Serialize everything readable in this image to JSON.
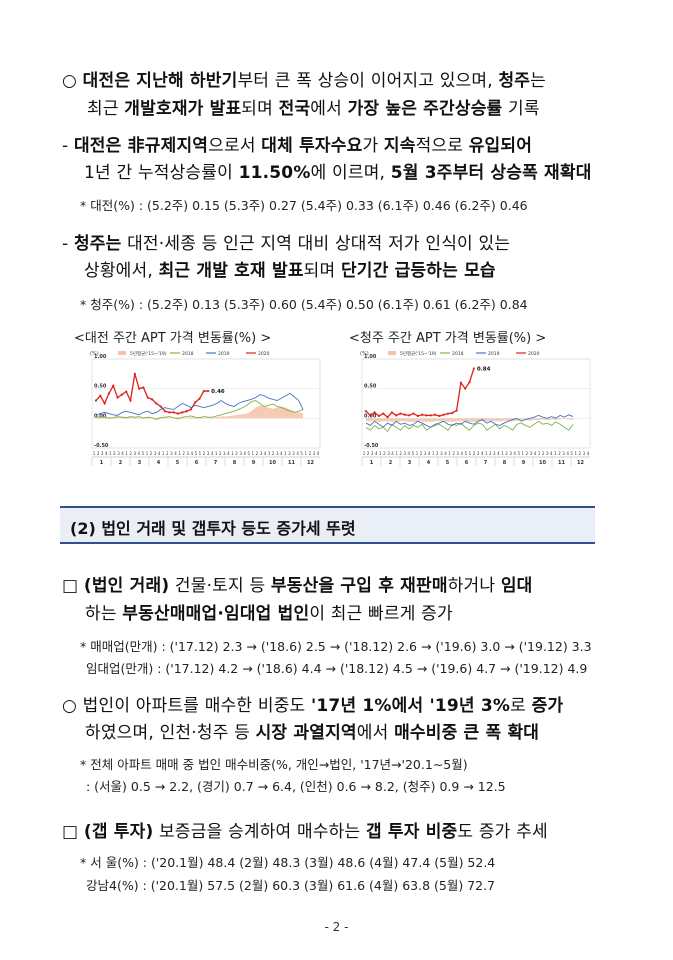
{
  "p1": {
    "l1": {
      "a": "○ ",
      "b1": "대전은 지난해 하반기",
      "c": "부터 큰 폭 상승이 이어지고 있으며, ",
      "b2": "청주",
      "d": "는"
    },
    "l2": {
      "a": "최근 ",
      "b1": "개발호재가 발표",
      "c": "되며 ",
      "b2": "전국",
      "d": "에서 ",
      "b3": "가장 높은 주간상승률",
      "e": " 기록"
    }
  },
  "p2": {
    "l1": {
      "a": "- ",
      "b1": "대전은 非규제지역",
      "c": "으로서 ",
      "b2": "대체 투자수요",
      "d": "가 ",
      "b3": "지속",
      "e": "적으로 ",
      "b4": "유입되어"
    },
    "l2": {
      "a": "1년 간 누적상승률이 ",
      "b1": "11.50%",
      "c": "에 이르며, ",
      "b2": "5월 3주부터 상승폭 재확대"
    }
  },
  "p3": "* 대전(%) : (5.2주) 0.15 (5.3주) 0.27 (5.4주) 0.33 (6.1주) 0.46 (6.2주) 0.46",
  "p4": {
    "l1": {
      "a": "- ",
      "b1": "청주는",
      "c": " 대전·세종 등 인근 지역 대비 상대적 저가 인식이 있는"
    },
    "l2": {
      "a": "상황에서, ",
      "b1": "최근 개발 호재 발표",
      "c": "되며 ",
      "b2": "단기간 급등하는 모습"
    }
  },
  "p5": "* 청주(%) : (5.2주) 0.13 (5.3주) 0.60 (5.4주) 0.50 (6.1주) 0.61 (6.2주) 0.84",
  "captions": {
    "left": "<대전 주간 APT 가격 변동률(%) >",
    "right": "<청주 주간 APT 가격 변동률(%) >"
  },
  "chart_data": [
    {
      "type": "line",
      "title": "",
      "unit": "(%)",
      "ylim": [
        -0.5,
        1.0
      ],
      "yticks": [
        "1.00",
        "0.50",
        "0.00",
        "-0.50"
      ],
      "months": [
        "1",
        "2",
        "3",
        "4",
        "5",
        "6",
        "7",
        "8",
        "9",
        "10",
        "11",
        "12"
      ],
      "week_ticks": "12341234123451234123412345123412341234512341234123451234",
      "legend": [
        "5년평균('15~'19)",
        "2018",
        "2019",
        "2020"
      ],
      "colors": {
        "avg": "#f4c2a8",
        "y2018": "#7ab648",
        "y2019": "#4472c4",
        "y2020": "#e0201b"
      },
      "annotation": "0.46",
      "series": [
        {
          "name": "5년평균('15~'19)",
          "values": [
            0.02,
            0.02,
            0.03,
            0.02,
            0.02,
            0.03,
            0.03,
            0.02,
            0.02,
            0.02,
            0.01,
            0.02,
            0.02,
            0.01,
            0.01,
            0.02,
            0.02,
            0.01,
            0.01,
            0.02,
            0.01,
            0.01,
            0.02,
            0.02,
            0.02,
            0.01,
            0.02,
            0.01,
            0.02,
            0.03,
            0.03,
            0.04,
            0.05,
            0.06,
            0.07,
            0.08,
            0.12,
            0.18,
            0.22,
            0.2,
            0.18,
            0.16,
            0.18,
            0.2,
            0.18,
            0.15,
            0.12,
            0.1,
            0.08
          ]
        },
        {
          "name": "2018",
          "values": [
            0.02,
            0.02,
            0.02,
            0.0,
            0.01,
            0.03,
            0.02,
            0.01,
            0.03,
            0.02,
            0.03,
            0.0,
            0.02,
            0.01,
            -0.02,
            0.01,
            0.02,
            0.03,
            0.01,
            -0.01,
            0.02,
            0.03,
            0.04,
            0.02,
            0.01,
            0.03,
            0.02,
            0.02,
            0.04,
            0.06,
            0.08,
            0.1,
            0.12,
            0.15,
            0.18,
            0.22,
            0.28,
            0.3,
            0.25,
            0.2,
            0.22,
            0.24,
            0.2,
            0.18,
            0.15,
            0.12,
            0.1,
            0.12,
            0.15
          ]
        },
        {
          "name": "2019",
          "values": [
            0.05,
            0.08,
            0.1,
            0.08,
            0.06,
            0.05,
            0.1,
            0.12,
            0.1,
            0.08,
            0.06,
            0.1,
            0.12,
            0.08,
            0.1,
            0.15,
            0.18,
            0.16,
            0.15,
            0.2,
            0.25,
            0.22,
            0.18,
            0.22,
            0.2,
            0.18,
            0.2,
            0.22,
            0.25,
            0.3,
            0.25,
            0.22,
            0.2,
            0.25,
            0.28,
            0.3,
            0.32,
            0.35,
            0.4,
            0.38,
            0.34,
            0.32,
            0.3,
            0.34,
            0.38,
            0.42,
            0.36,
            0.3,
            0.15
          ]
        },
        {
          "name": "2020",
          "values": [
            0.3,
            0.38,
            0.25,
            0.42,
            0.55,
            0.35,
            0.4,
            0.45,
            0.3,
            0.75,
            0.5,
            0.52,
            0.35,
            0.32,
            0.25,
            0.2,
            0.12,
            0.1,
            0.1,
            0.08,
            0.1,
            0.12,
            0.15,
            0.27,
            0.33,
            0.46,
            0.46
          ]
        }
      ]
    },
    {
      "type": "line",
      "title": "",
      "unit": "(%)",
      "ylim": [
        -0.5,
        1.0
      ],
      "yticks": [
        "1.00",
        "0.50",
        "0.00",
        "-0.50"
      ],
      "months": [
        "1",
        "2",
        "3",
        "4",
        "5",
        "6",
        "7",
        "8",
        "9",
        "10",
        "11",
        "12"
      ],
      "week_ticks": "12341234123451234123412345123412341234512341234123451234",
      "legend": [
        "5년평균('15~'19)",
        "2018",
        "2019",
        "2020"
      ],
      "colors": {
        "avg": "#f4c2a8",
        "y2018": "#7ab648",
        "y2019": "#4472c4",
        "y2020": "#e0201b"
      },
      "annotation": "0.84",
      "series": [
        {
          "name": "5년평균('15~'19)",
          "values": [
            -0.05,
            -0.05,
            -0.05,
            -0.06,
            -0.05,
            -0.05,
            -0.06,
            -0.06,
            -0.05,
            -0.05,
            -0.06,
            -0.06,
            -0.05,
            -0.05,
            -0.06,
            -0.06,
            -0.05,
            -0.05,
            -0.05,
            -0.06,
            -0.06,
            -0.05,
            -0.05,
            -0.05,
            -0.06,
            -0.06,
            -0.05,
            -0.05,
            -0.05,
            -0.04,
            -0.05,
            -0.05,
            -0.04,
            -0.04,
            -0.05,
            -0.04,
            -0.03,
            -0.03,
            -0.04,
            -0.03,
            -0.03,
            -0.02,
            -0.03,
            -0.02,
            -0.02,
            -0.02,
            -0.01,
            -0.02,
            -0.02
          ]
        },
        {
          "name": "2018",
          "values": [
            -0.15,
            -0.2,
            -0.12,
            -0.18,
            -0.15,
            -0.22,
            -0.1,
            -0.15,
            -0.2,
            -0.12,
            -0.18,
            -0.12,
            -0.15,
            -0.1,
            -0.2,
            -0.15,
            -0.12,
            -0.1,
            -0.15,
            -0.2,
            -0.1,
            -0.12,
            -0.08,
            -0.15,
            -0.2,
            -0.12,
            -0.08,
            -0.1,
            -0.2,
            -0.15,
            -0.1,
            -0.18,
            -0.12,
            -0.15,
            -0.2,
            -0.1,
            -0.08,
            -0.12,
            -0.15,
            -0.1,
            -0.05,
            -0.1,
            -0.08,
            -0.12,
            -0.06,
            -0.1,
            -0.15,
            -0.2,
            -0.1
          ]
        },
        {
          "name": "2019",
          "values": [
            -0.08,
            -0.12,
            -0.05,
            -0.1,
            -0.15,
            -0.08,
            -0.12,
            -0.05,
            -0.1,
            -0.08,
            -0.12,
            -0.1,
            -0.05,
            -0.08,
            -0.12,
            -0.15,
            -0.1,
            -0.08,
            -0.05,
            -0.1,
            -0.12,
            -0.08,
            -0.1,
            -0.05,
            -0.08,
            -0.1,
            -0.05,
            -0.02,
            -0.08,
            -0.05,
            -0.1,
            -0.12,
            -0.08,
            -0.05,
            -0.02,
            0.0,
            -0.05,
            -0.02,
            0.0,
            0.02,
            0.05,
            0.02,
            0.0,
            0.03,
            0.0,
            0.05,
            0.02,
            0.06,
            0.03
          ]
        },
        {
          "name": "2020",
          "values": [
            0.12,
            0.05,
            0.1,
            0.04,
            0.08,
            0.02,
            0.1,
            0.05,
            0.08,
            0.06,
            0.05,
            0.08,
            0.04,
            0.06,
            0.05,
            0.05,
            0.06,
            0.04,
            0.06,
            0.08,
            0.09,
            0.13,
            0.6,
            0.5,
            0.61,
            0.84
          ]
        }
      ]
    }
  ],
  "section_title": "(2) 법인 거래 및 갭투자 등도 증가세 뚜렷",
  "p6": {
    "l1": {
      "a": "□ ",
      "b1": "(법인 거래)",
      "c": " 건물·토지 등 ",
      "b2": "부동산을 구입 후 재판매",
      "d": "하거나 ",
      "b3": "임대"
    },
    "l2": {
      "a": "하는 ",
      "b1": "부동산매매업·임대업 법인",
      "c": "이 최근 빠르게 증가"
    }
  },
  "p7": {
    "l1": "* 매매업(만개) : ('17.12) 2.3 → ('18.6) 2.5 → ('18.12) 2.6 → ('19.6) 3.0 → ('19.12) 3.3",
    "l2": "임대업(만개) : ('17.12) 4.2 → ('18.6) 4.4 → ('18.12) 4.5 → ('19.6) 4.7 → ('19.12) 4.9"
  },
  "p8": {
    "l1": {
      "a": "○ 법인이 아파트를 매수한 비중도 ",
      "b1": "'17년 1%에서 '19년 3%",
      "c": "로 ",
      "b2": "증가"
    },
    "l2": {
      "a": "하였으며, 인천·청주 등 ",
      "b1": "시장 과열지역",
      "c": "에서 ",
      "b2": "매수비중 큰 폭 확대"
    }
  },
  "p9": {
    "l1": "* 전체 아파트 매매 중 법인 매수비중(%, 개인→법인, '17년→'20.1∼5월)",
    "l2": ": (서울) 0.5 → 2.2, (경기) 0.7 → 6.4, (인천) 0.6 → 8.2, (청주) 0.9 → 12.5"
  },
  "p10": {
    "a": "□ ",
    "b1": "(갭 투자)",
    "c": " 보증금을 승계하여 매수하는 ",
    "b2": "갭 투자 비중",
    "d": "도 증가 추세"
  },
  "p11": {
    "l1": "* 서 울(%) : ('20.1월) 48.4 (2월) 48.3 (3월) 48.6 (4월) 47.4 (5월) 52.4",
    "l2": "강남4(%) : ('20.1월) 57.5 (2월) 60.3 (3월) 61.6 (4월) 63.8 (5월) 72.7"
  },
  "footer": "- 2 -"
}
